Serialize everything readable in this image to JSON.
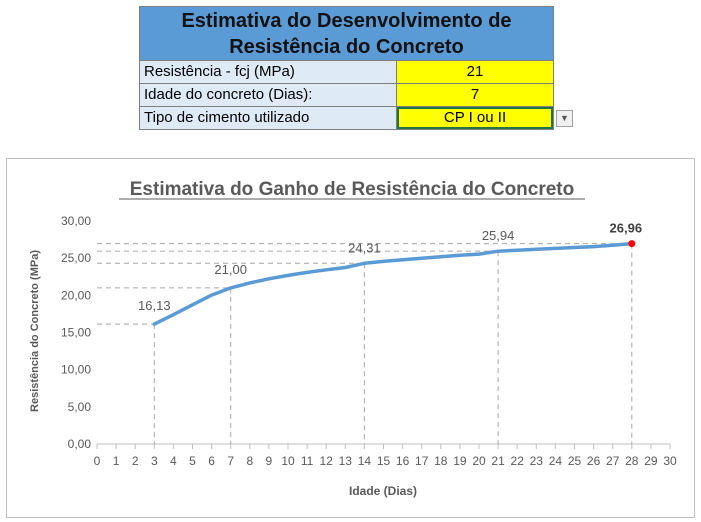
{
  "table": {
    "title_line1": "Estimativa do Desenvolvimento de",
    "title_line2": "Resistência do Concreto",
    "rows": [
      {
        "label": "Resistência - fcj (MPa)",
        "value": "21"
      },
      {
        "label": "Idade do concreto (Dias):",
        "value": "7"
      },
      {
        "label": "Tipo de cimento utilizado",
        "value": "CP I ou II"
      }
    ]
  },
  "chart_data": {
    "type": "line",
    "title": "Estimativa do Ganho de Resistência do Concreto",
    "xlabel": "Idade (Dias)",
    "ylabel": "Resistência do Concreto (MPa)",
    "xlim": [
      0,
      30
    ],
    "ylim": [
      0,
      30
    ],
    "xticks": [
      0,
      1,
      2,
      3,
      4,
      5,
      6,
      7,
      8,
      9,
      10,
      11,
      12,
      13,
      14,
      15,
      16,
      17,
      18,
      19,
      20,
      21,
      22,
      23,
      24,
      25,
      26,
      27,
      28,
      29,
      30
    ],
    "yticks": [
      "0,00",
      "5,00",
      "10,00",
      "15,00",
      "20,00",
      "25,00",
      "30,00"
    ],
    "grid": false,
    "series": [
      {
        "x": [
          3,
          4,
          5,
          6,
          7,
          8,
          9,
          10,
          11,
          12,
          13,
          14,
          15,
          16,
          17,
          18,
          19,
          20,
          21,
          22,
          23,
          24,
          25,
          26,
          27,
          28
        ],
        "y": [
          16.13,
          17.4,
          18.73,
          20.03,
          21.0,
          21.67,
          22.22,
          22.68,
          23.08,
          23.43,
          23.74,
          24.31,
          24.56,
          24.79,
          25.0,
          25.2,
          25.38,
          25.55,
          25.94,
          26.07,
          26.2,
          26.32,
          26.44,
          26.55,
          26.75,
          26.96
        ],
        "color": "#5b9bd5"
      }
    ],
    "highlight_points": [
      {
        "x": 3,
        "y": 16.13,
        "label": "16,13"
      },
      {
        "x": 7,
        "y": 21.0,
        "label": "21,00"
      },
      {
        "x": 14,
        "y": 24.31,
        "label": "24,31"
      },
      {
        "x": 21,
        "y": 25.94,
        "label": "25,94"
      },
      {
        "x": 28,
        "y": 26.96,
        "label": "26,96",
        "marker_color": "#ff0000",
        "bold": true
      }
    ]
  }
}
